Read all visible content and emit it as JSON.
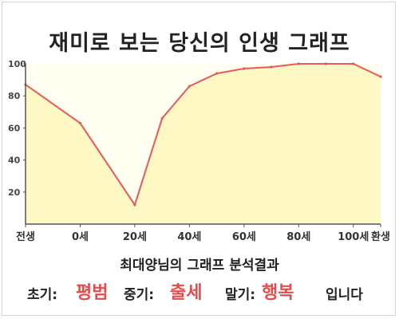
{
  "title": "재미로 보는 당신의 인생 그래프",
  "chart_data": {
    "type": "area",
    "x_tick_labels": [
      "전생",
      "0세",
      "20세",
      "40세",
      "60세",
      "80세",
      "100세",
      "환생"
    ],
    "y_ticks": [
      20,
      40,
      60,
      80,
      100
    ],
    "ylim": [
      0,
      100
    ],
    "grid": false,
    "series": [
      {
        "x": [
          -10,
          0,
          10,
          15,
          20,
          25,
          30,
          35,
          40,
          45,
          50,
          55
        ],
        "values": [
          87,
          63,
          12,
          66,
          86,
          94,
          97,
          98,
          100,
          100,
          100,
          92
        ]
      }
    ],
    "colors": {
      "line": "#e85a5a",
      "fill": "#fdf8c4",
      "fill_light": "#fffef0",
      "axis": "#555555"
    }
  },
  "result": {
    "title": "최대양님의 그래프 분석결과",
    "early_label": "초기:",
    "early_value": "평범",
    "middle_label": "중기:",
    "middle_value": "출세",
    "late_label": "말기:",
    "late_value": "행복",
    "suffix": "입니다"
  }
}
